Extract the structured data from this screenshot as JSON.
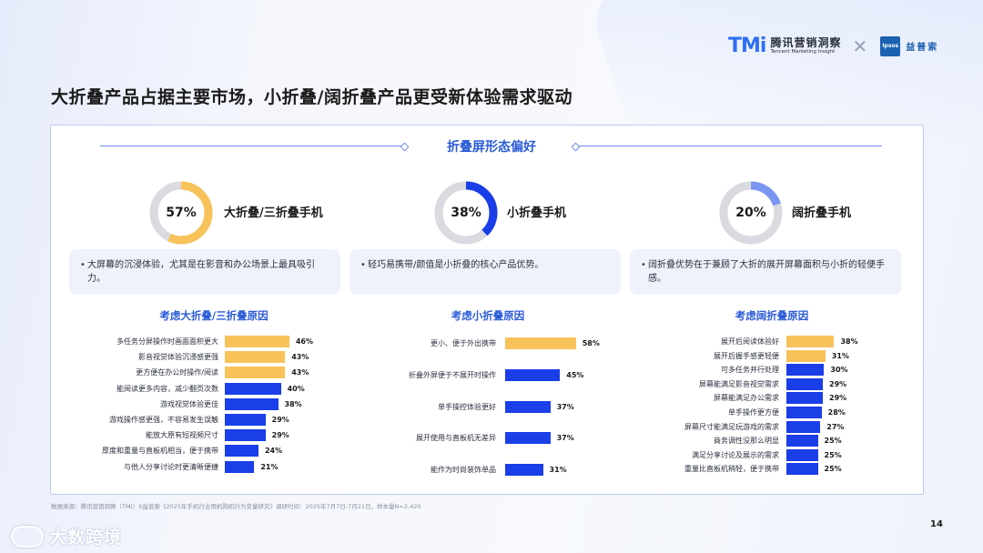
{
  "header": {
    "brand_mark": "TMi",
    "brand_cn": "腾讯营销洞察",
    "brand_en": "Tencent Marketing Insight",
    "partner_logo": "Ipsos",
    "partner_cn": "益普索"
  },
  "title": "大折叠产品占据主要市场，小折叠/阔折叠产品更受新体验需求驱动",
  "section_title": "折叠屏形态偏好",
  "colors": {
    "highlight": "#f8c25b",
    "bar": "#1a3ee8",
    "donut_track": "#d9dbe0"
  },
  "segments": [
    {
      "pct_label": "57%",
      "pct": 57,
      "color": "#f8c25b",
      "label": "大折叠/三折叠手机",
      "desc": "大屏幕的沉浸体验，尤其是在影音和办公场景上最具吸引力。",
      "reason_title": "考虑大折叠/三折叠原因"
    },
    {
      "pct_label": "38%",
      "pct": 38,
      "color": "#1a3ee8",
      "label": "小折叠手机",
      "desc": "轻巧易携带/颜值是小折叠的核心产品优势。",
      "reason_title": "考虑小折叠原因"
    },
    {
      "pct_label": "20%",
      "pct": 20,
      "color": "#7a96f2",
      "label": "阔折叠手机",
      "desc": "阔折叠优势在于兼顾了大折的展开屏幕面积与小折的轻便手感。",
      "reason_title": "考虑阔折叠原因"
    }
  ],
  "chart_data": [
    {
      "type": "bar",
      "orientation": "horizontal",
      "title": "考虑大折叠/三折叠原因",
      "categories": [
        "多任务分屏操作时画面面积更大",
        "影音视觉体验沉浸感更强",
        "更方便在办公时操作/阅读",
        "能阅读更多内容，减少翻页次数",
        "游戏视觉体验更佳",
        "游戏操作感更强，不容易发生误触",
        "能放大原有短视频尺寸",
        "厚度和重量与直板机相当，便于携带",
        "与他人分享讨论时更清晰便捷"
      ],
      "values": [
        46,
        43,
        43,
        40,
        38,
        29,
        29,
        24,
        21
      ],
      "value_labels": [
        "46%",
        "43%",
        "43%",
        "40%",
        "38%",
        "29%",
        "29%",
        "24%",
        "21%"
      ],
      "highlight_count": 3
    },
    {
      "type": "bar",
      "orientation": "horizontal",
      "title": "考虑小折叠原因",
      "categories": [
        "更小、便于外出携带",
        "折叠外屏便于不展开时操作",
        "单手操控体验更好",
        "展开使用与直板机无差异",
        "能作为时尚装饰单品"
      ],
      "values": [
        58,
        45,
        37,
        37,
        31
      ],
      "value_labels": [
        "58%",
        "45%",
        "37%",
        "37%",
        "31%"
      ],
      "highlight_count": 1
    },
    {
      "type": "bar",
      "orientation": "horizontal",
      "title": "考虑阔折叠原因",
      "categories": [
        "展开后阅读体验好",
        "展开后握手感更轻便",
        "可多任务并行处理",
        "屏幕能满足影音视觉需求",
        "屏幕能满足办公需求",
        "单手操作更方便",
        "屏幕尺寸能满足玩游戏的需求",
        "商务调性没那么明显",
        "满足分享讨论及展示的需求",
        "重量比直板机稍轻，便于携带"
      ],
      "values": [
        38,
        31,
        30,
        29,
        29,
        28,
        27,
        25,
        25,
        25
      ],
      "value_labels": [
        "38%",
        "31%",
        "30%",
        "29%",
        "29%",
        "28%",
        "27%",
        "25%",
        "25%",
        "25%"
      ],
      "highlight_count": 2
    }
  ],
  "footer": {
    "source": "数据来源：腾讯营销洞察（TMI）X益普索《2025年手机行业用机购机行为变量研究》调研时间：2025年7月7日-7月21日，样本量N=2,420",
    "page_number": "14",
    "watermark": "大数跨境"
  }
}
